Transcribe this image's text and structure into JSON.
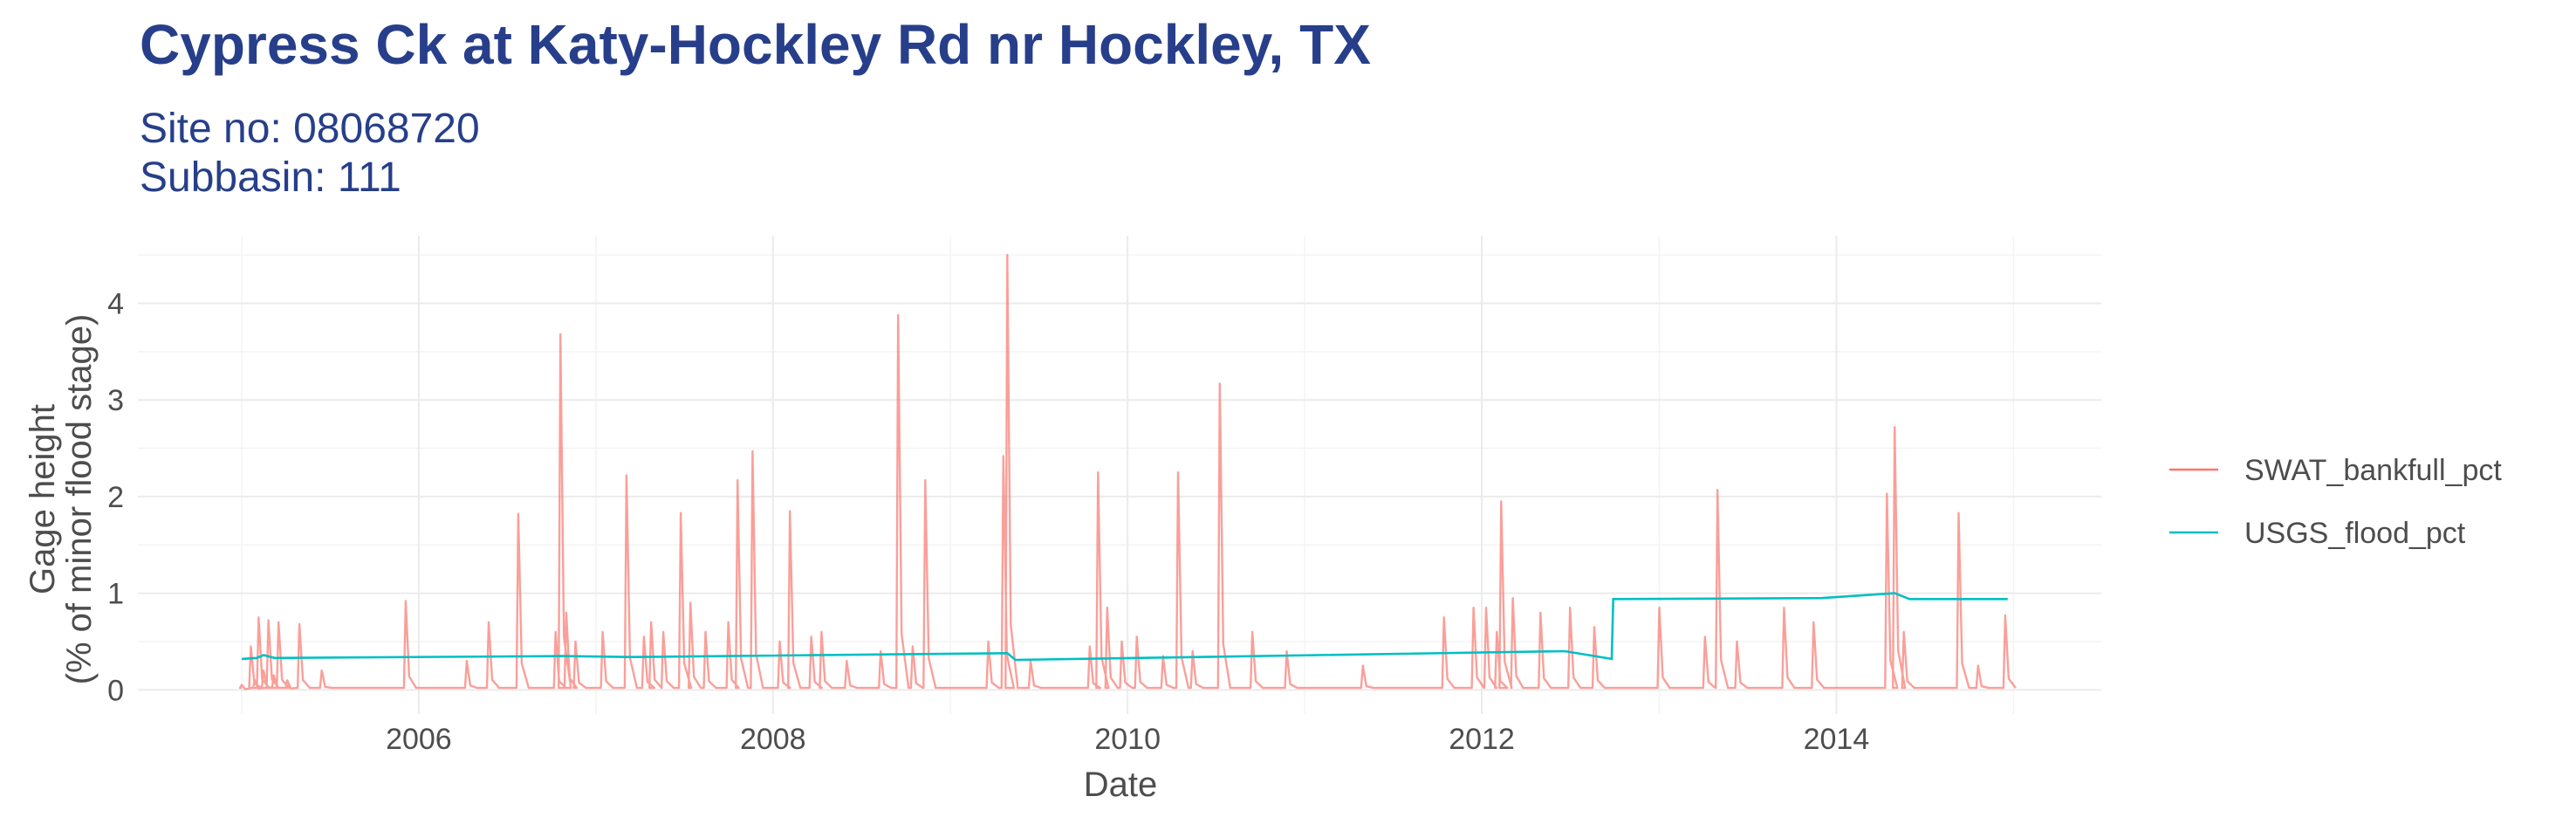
{
  "colors": {
    "title": "#273f8a",
    "grid_major": "#ebebeb",
    "grid_minor": "#f4f4f4",
    "text": "#4d4d4d"
  },
  "chart_data": {
    "type": "line",
    "title": "Cypress Ck at Katy-Hockley Rd nr Hockley, TX",
    "subtitle_lines": [
      "Site no: 08068720",
      "Subbasin: 111"
    ],
    "xlabel": "Date",
    "ylabel_lines": [
      "Gage height",
      "(% of minor flood stage)"
    ],
    "xlim": [
      "2004-06-01",
      "2015-07-01"
    ],
    "ylim": [
      -0.25,
      4.7
    ],
    "x_ticks": [
      {
        "value": "2006-01-01",
        "label": "2006"
      },
      {
        "value": "2008-01-01",
        "label": "2008"
      },
      {
        "value": "2010-01-01",
        "label": "2010"
      },
      {
        "value": "2012-01-01",
        "label": "2012"
      },
      {
        "value": "2014-01-01",
        "label": "2014"
      }
    ],
    "x_minor_ticks": [
      "2005-01-01",
      "2007-01-01",
      "2009-01-01",
      "2011-01-01",
      "2013-01-01",
      "2015-01-01"
    ],
    "y_ticks": [
      0,
      1,
      2,
      3,
      4
    ],
    "y_minor_ticks": [
      0.5,
      1.5,
      2.5,
      3.5,
      4.5
    ],
    "grid": true,
    "legend_position": "right",
    "series": [
      {
        "name": "SWAT_bankfull_pct",
        "color": "#f8766d",
        "points": [
          [
            "2005-01-01",
            0.05
          ],
          [
            "2005-01-20",
            0.45
          ],
          [
            "2005-01-28",
            0.1
          ],
          [
            "2005-02-05",
            0.75
          ],
          [
            "2005-02-15",
            0.2
          ],
          [
            "2005-02-25",
            0.72
          ],
          [
            "2005-03-08",
            0.15
          ],
          [
            "2005-03-18",
            0.7
          ],
          [
            "2005-04-05",
            0.1
          ],
          [
            "2005-04-30",
            0.68
          ],
          [
            "2005-06-15",
            0.2
          ],
          [
            "2005-12-05",
            0.92
          ],
          [
            "2006-04-10",
            0.3
          ],
          [
            "2006-05-25",
            0.7
          ],
          [
            "2006-07-25",
            1.82
          ],
          [
            "2006-10-10",
            0.6
          ],
          [
            "2006-10-20",
            3.68
          ],
          [
            "2006-11-01",
            0.8
          ],
          [
            "2006-11-20",
            0.5
          ],
          [
            "2007-01-15",
            0.6
          ],
          [
            "2007-03-05",
            2.22
          ],
          [
            "2007-04-10",
            0.55
          ],
          [
            "2007-04-25",
            0.7
          ],
          [
            "2007-05-20",
            0.6
          ],
          [
            "2007-06-25",
            1.83
          ],
          [
            "2007-07-15",
            0.9
          ],
          [
            "2007-08-15",
            0.6
          ],
          [
            "2007-10-01",
            0.7
          ],
          [
            "2007-10-20",
            2.17
          ],
          [
            "2007-11-20",
            2.47
          ],
          [
            "2008-01-15",
            0.5
          ],
          [
            "2008-02-05",
            1.85
          ],
          [
            "2008-03-20",
            0.55
          ],
          [
            "2008-04-10",
            0.6
          ],
          [
            "2008-06-01",
            0.3
          ],
          [
            "2008-08-10",
            0.4
          ],
          [
            "2008-09-15",
            3.88
          ],
          [
            "2008-10-15",
            0.45
          ],
          [
            "2008-11-10",
            2.17
          ],
          [
            "2009-03-20",
            0.5
          ],
          [
            "2009-04-20",
            2.42
          ],
          [
            "2009-04-28",
            4.5
          ],
          [
            "2009-06-15",
            0.3
          ],
          [
            "2009-10-15",
            0.45
          ],
          [
            "2009-11-01",
            2.25
          ],
          [
            "2009-11-20",
            0.85
          ],
          [
            "2009-12-20",
            0.5
          ],
          [
            "2010-01-20",
            0.55
          ],
          [
            "2010-03-15",
            0.35
          ],
          [
            "2010-04-15",
            2.25
          ],
          [
            "2010-05-15",
            0.4
          ],
          [
            "2010-07-10",
            3.17
          ],
          [
            "2010-09-15",
            0.6
          ],
          [
            "2010-11-25",
            0.4
          ],
          [
            "2011-05-01",
            0.25
          ],
          [
            "2011-10-15",
            0.75
          ],
          [
            "2011-12-15",
            0.85
          ],
          [
            "2012-01-10",
            0.85
          ],
          [
            "2012-02-01",
            0.6
          ],
          [
            "2012-02-10",
            1.95
          ],
          [
            "2012-03-05",
            0.95
          ],
          [
            "2012-05-01",
            0.8
          ],
          [
            "2012-07-01",
            0.85
          ],
          [
            "2012-08-20",
            0.65
          ],
          [
            "2013-01-01",
            0.85
          ],
          [
            "2013-04-05",
            0.55
          ],
          [
            "2013-05-01",
            2.07
          ],
          [
            "2013-06-10",
            0.5
          ],
          [
            "2013-09-15",
            0.85
          ],
          [
            "2013-11-15",
            0.7
          ],
          [
            "2014-04-15",
            2.03
          ],
          [
            "2014-05-01",
            2.72
          ],
          [
            "2014-05-20",
            0.6
          ],
          [
            "2014-09-10",
            1.83
          ],
          [
            "2014-10-20",
            0.25
          ],
          [
            "2014-12-15",
            0.77
          ]
        ]
      },
      {
        "name": "USGS_flood_pct",
        "color": "#00bfc4",
        "points": [
          [
            "2005-01-01",
            0.32
          ],
          [
            "2005-02-01",
            0.33
          ],
          [
            "2005-02-15",
            0.36
          ],
          [
            "2005-03-10",
            0.33
          ],
          [
            "2006-10-20",
            0.35
          ],
          [
            "2007-03-15",
            0.34
          ],
          [
            "2009-04-28",
            0.38
          ],
          [
            "2009-05-15",
            0.31
          ],
          [
            "2012-06-20",
            0.4
          ],
          [
            "2012-09-25",
            0.32
          ],
          [
            "2012-09-28",
            0.94
          ],
          [
            "2013-12-01",
            0.95
          ],
          [
            "2014-05-01",
            1.0
          ],
          [
            "2014-06-01",
            0.94
          ],
          [
            "2014-12-20",
            0.94
          ]
        ]
      }
    ]
  }
}
